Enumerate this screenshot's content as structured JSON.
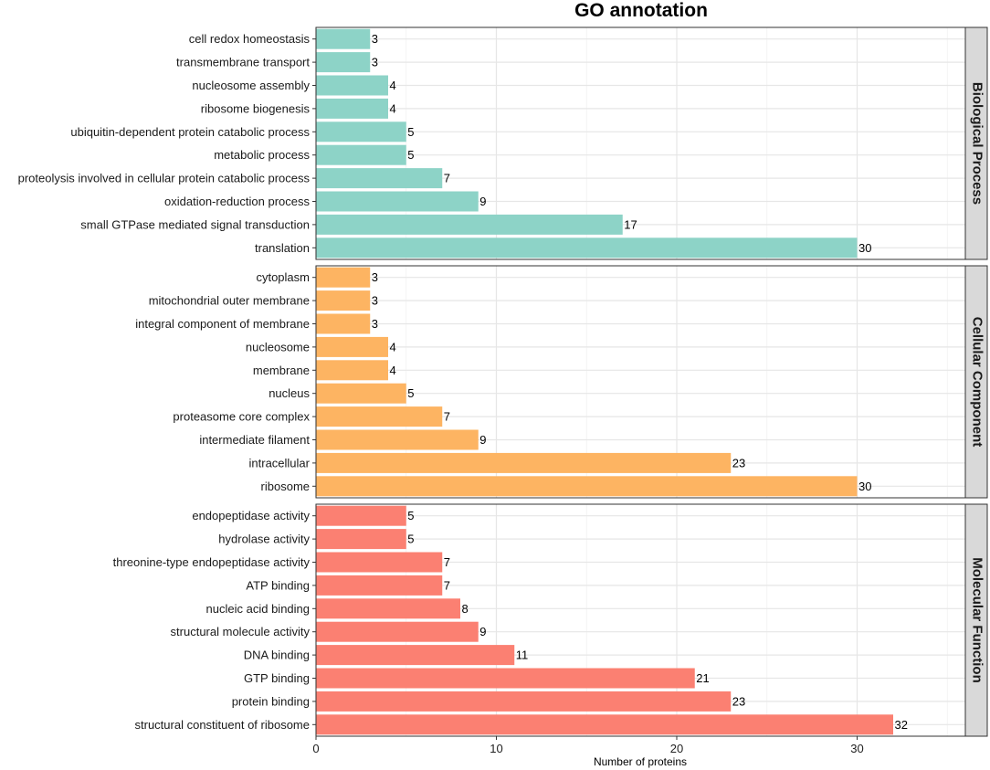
{
  "chart_data": {
    "type": "bar",
    "orientation": "horizontal",
    "title": "GO annotation",
    "xlabel": "Number of proteins",
    "xlim": [
      0,
      36
    ],
    "xticks": [
      0,
      10,
      20,
      30
    ],
    "panels": [
      {
        "name": "Biological Process",
        "color": "#8dd3c7",
        "categories": [
          "cell redox homeostasis",
          "transmembrane transport",
          "nucleosome assembly",
          "ribosome biogenesis",
          "ubiquitin-dependent protein catabolic process",
          "metabolic process",
          "proteolysis involved in cellular protein catabolic process",
          "oxidation-reduction process",
          "small GTPase mediated signal transduction",
          "translation"
        ],
        "values": [
          3,
          3,
          4,
          4,
          5,
          5,
          7,
          9,
          17,
          30
        ]
      },
      {
        "name": "Cellular Component",
        "color": "#fdb462",
        "categories": [
          "cytoplasm",
          "mitochondrial outer membrane",
          "integral component of membrane",
          "nucleosome",
          "membrane",
          "nucleus",
          "proteasome core complex",
          "intermediate filament",
          "intracellular",
          "ribosome"
        ],
        "values": [
          3,
          3,
          3,
          4,
          4,
          5,
          7,
          9,
          23,
          30
        ]
      },
      {
        "name": "Molecular Function",
        "color": "#fb8072",
        "categories": [
          "endopeptidase activity",
          "hydrolase activity",
          "threonine-type endopeptidase activity",
          "ATP binding",
          "nucleic acid binding",
          "structural molecule activity",
          "DNA binding",
          "GTP binding",
          "protein binding",
          "structural constituent of ribosome"
        ],
        "values": [
          5,
          5,
          7,
          7,
          8,
          9,
          11,
          21,
          23,
          32
        ]
      }
    ]
  }
}
